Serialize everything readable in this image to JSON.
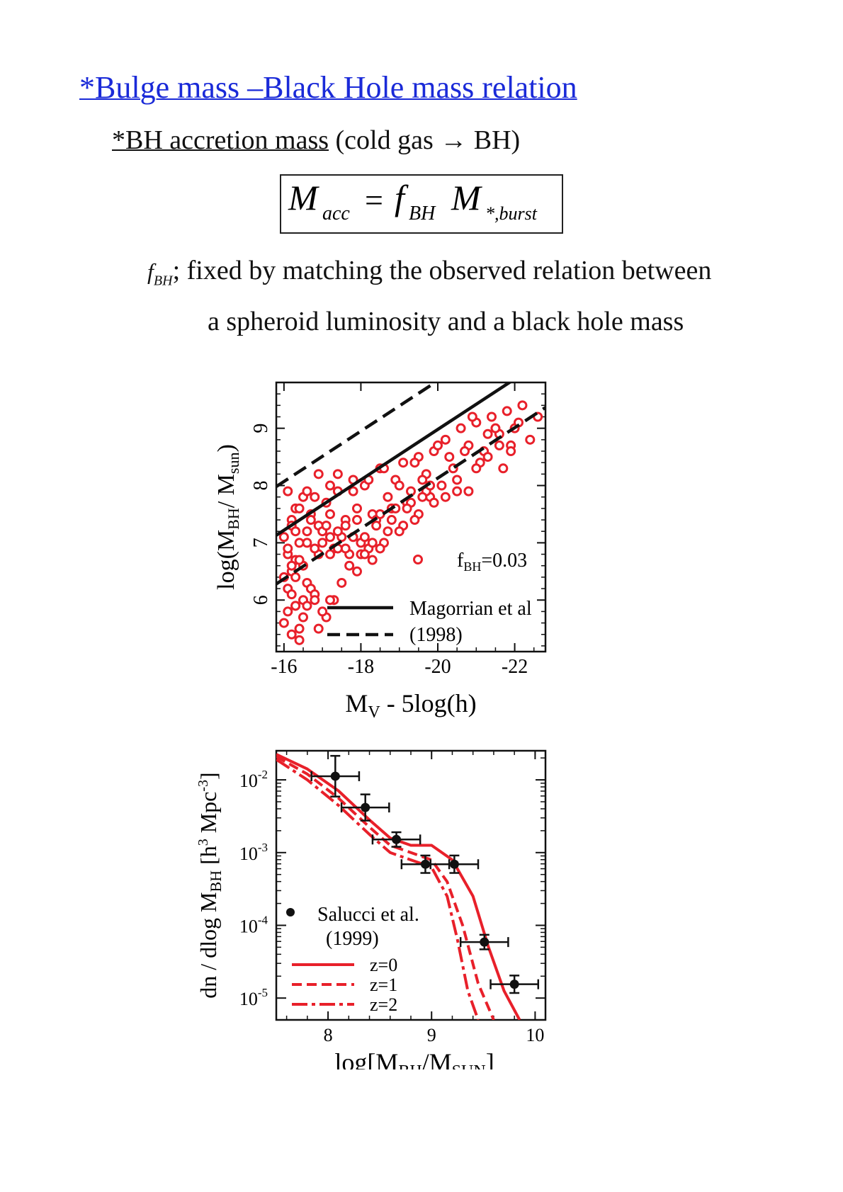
{
  "heading": {
    "title": "*Bulge mass –Black Hole mass relation",
    "subtitle_underlined": "*BH accretion mass",
    "subtitle_rest": " (cold gas  →   BH)"
  },
  "formula": {
    "lhs": "M",
    "lhs_sub": "acc",
    "equals": "=",
    "f": "f",
    "f_sub": "BH",
    "m": "M",
    "m_sub": "*,burst"
  },
  "description": {
    "symbol": "f",
    "symbol_sub": "BH",
    "line1": "; fixed by matching the observed relation between",
    "line2": "a spheroid luminosity and a black hole mass"
  },
  "colors": {
    "title": "#1a2ad8",
    "data_red": "#e8202a",
    "line_black": "#111111"
  },
  "chart_data": [
    {
      "type": "scatter",
      "xlabel_main": "M",
      "xlabel_sub": "V",
      "xlabel_rest": " - 5log(h)",
      "ylabel_main": "log(M",
      "ylabel_sub1": "BH",
      "ylabel_mid": "/ M",
      "ylabel_sub2": "sun",
      "ylabel_end": ")",
      "xlim": [
        -15.8,
        -22.8
      ],
      "ylim": [
        5.1,
        9.8
      ],
      "xticks": [
        -16,
        -18,
        -20,
        -22
      ],
      "xtick_labels": [
        "-16",
        "-18",
        "-20",
        "-22"
      ],
      "yticks": [
        6,
        7,
        8,
        9
      ],
      "ytick_labels": [
        "6",
        "7",
        "8",
        "9"
      ],
      "legend": {
        "marker_label_main": "f",
        "marker_label_sub": "BH",
        "marker_label_rest": "=0.03",
        "line_label_1": "Magorrian et al",
        "line_label_2": "(1998)"
      },
      "fit_line": {
        "name": "Magorrian et al (1998)",
        "slope": -0.44,
        "intercept": 0.18,
        "dex_band": 0.85
      },
      "series": [
        {
          "name": "f_BH=0.03",
          "x": [
            -16.0,
            -16.1,
            -16.2,
            -16.1,
            -16.3,
            -16.4,
            -16.2,
            -16.5,
            -16.1,
            -16.6,
            -16.3,
            -16.7,
            -16.9,
            -17.1,
            -17.2,
            -17.4,
            -17.6,
            -17.8,
            -17.9,
            -18.1,
            -18.3,
            -18.5,
            -18.7,
            -18.9,
            -19.1,
            -19.3,
            -19.5,
            -19.7,
            -19.9,
            -20.2,
            -20.4,
            -20.6,
            -20.8,
            -21.0,
            -21.2,
            -21.4,
            -21.6,
            -21.8,
            -22.0,
            -22.2,
            -22.4,
            -22.6,
            -16.2,
            -16.4,
            -16.6,
            -16.8,
            -17.0,
            -17.2,
            -17.4,
            -17.6,
            -17.8,
            -18.0,
            -18.2,
            -18.4,
            -18.6,
            -18.8,
            -19.0,
            -19.2,
            -19.4,
            -19.6,
            -19.8,
            -20.0,
            -20.3,
            -20.5,
            -20.7,
            -20.9,
            -21.1,
            -21.3,
            -21.5,
            -21.7,
            -21.9,
            -22.1,
            -16.1,
            -16.3,
            -16.5,
            -16.7,
            -16.9,
            -17.1,
            -17.3,
            -17.5,
            -17.7,
            -17.9,
            -18.1,
            -18.3,
            -18.5,
            -18.7,
            -18.9,
            -19.1,
            -19.3,
            -19.5,
            -19.7,
            -19.9,
            -20.1,
            -16.0,
            -16.2,
            -16.4,
            -16.6,
            -16.8,
            -17.0,
            -17.2,
            -17.4,
            -17.6,
            -17.8,
            -18.0,
            -18.2,
            -18.4,
            -18.6,
            -18.8,
            -19.0,
            -19.2,
            -19.4,
            -19.6,
            -16.1,
            -16.3,
            -16.5,
            -16.7,
            -16.9,
            -17.1,
            -17.3,
            -17.5,
            -17.7,
            -17.9,
            -18.1,
            -18.3,
            -18.5,
            -16.2,
            -16.4,
            -16.6,
            -16.8,
            -17.0,
            -17.2,
            -17.4,
            -16.0,
            -16.3,
            -16.6,
            -16.9,
            -17.2,
            -16.2,
            -16.5,
            -16.4,
            -16.8,
            -16.3,
            -20.5,
            -21.0,
            -20.8,
            -19.8,
            -20.2,
            -21.3,
            -21.6,
            -21.9
          ],
          "y": [
            7.1,
            6.8,
            7.4,
            6.2,
            7.6,
            7.0,
            6.5,
            7.8,
            7.9,
            7.2,
            6.7,
            7.5,
            7.3,
            7.7,
            7.1,
            7.9,
            7.4,
            8.1,
            7.6,
            8.0,
            7.5,
            8.3,
            7.8,
            8.1,
            8.4,
            7.9,
            8.5,
            8.2,
            8.6,
            8.8,
            8.3,
            9.0,
            8.7,
            9.1,
            8.6,
            9.2,
            8.9,
            9.3,
            9.0,
            9.4,
            8.8,
            9.2,
            7.3,
            7.6,
            7.0,
            7.8,
            7.2,
            7.5,
            8.2,
            7.3,
            7.9,
            7.0,
            8.1,
            7.4,
            8.3,
            7.6,
            8.0,
            7.7,
            8.4,
            8.1,
            7.8,
            8.7,
            8.5,
            7.9,
            8.6,
            9.2,
            8.4,
            8.9,
            9.0,
            8.3,
            8.7,
            9.1,
            6.9,
            7.2,
            6.6,
            7.4,
            6.8,
            7.3,
            6.9,
            7.1,
            6.8,
            7.4,
            7.1,
            6.7,
            7.5,
            7.2,
            7.6,
            7.3,
            7.7,
            7.5,
            7.9,
            7.7,
            8.0,
            6.4,
            6.1,
            6.7,
            6.3,
            6.9,
            7.0,
            6.8,
            7.2,
            6.9,
            7.1,
            6.8,
            6.9,
            7.3,
            7.0,
            7.4,
            7.2,
            7.6,
            7.4,
            7.8,
            5.8,
            5.9,
            6.0,
            6.2,
            5.5,
            5.7,
            6.0,
            6.3,
            6.6,
            6.5,
            6.8,
            7.0,
            6.9,
            5.4,
            5.5,
            5.9,
            6.1,
            5.8,
            6.0,
            6.9,
            5.6,
            6.4,
            7.9,
            8.2,
            8.0,
            6.6,
            5.7,
            5.3,
            6.0,
            5.9,
            8.1,
            8.3,
            7.9,
            8.0,
            7.8,
            8.5,
            8.7,
            8.6
          ]
        }
      ]
    },
    {
      "type": "line",
      "xlabel_main": "log[M",
      "xlabel_sub1": "BH",
      "xlabel_mid": "/M",
      "xlabel_sub2": "SUN",
      "xlabel_end": "]",
      "ylabel_main": "dn / dlog M",
      "ylabel_sub": "BH",
      "ylabel_rest": "  [h",
      "ylabel_sup1": "3",
      "ylabel_rest2": " Mpc",
      "ylabel_sup2": "-3",
      "ylabel_end": "]",
      "y_scale": "log",
      "xlim": [
        7.5,
        10.1
      ],
      "ylim_log10": [
        -5.3,
        -1.6
      ],
      "xticks": [
        8,
        9,
        10
      ],
      "xtick_labels": [
        "8",
        "9",
        "10"
      ],
      "yticks_log10": [
        -2,
        -3,
        -4,
        -5
      ],
      "ytick_base": "10",
      "ytick_exps": [
        "-2",
        "-3",
        "-4",
        "-5"
      ],
      "legend": {
        "points_label_1": "Salucci et al.",
        "points_label_2": "(1999)",
        "line_labels": [
          "z=0",
          "z=1",
          "z=2"
        ]
      },
      "points": {
        "name": "Salucci et al. (1999)",
        "x": [
          8.07,
          8.36,
          8.66,
          8.94,
          9.22,
          9.51,
          9.8
        ],
        "log10_y": [
          -1.95,
          -2.38,
          -2.82,
          -3.16,
          -3.16,
          -4.23,
          -4.81
        ],
        "xerr": [
          0.23,
          0.23,
          0.23,
          0.23,
          0.23,
          0.23,
          0.23
        ],
        "log10_yerr": [
          0.28,
          0.18,
          0.1,
          0.12,
          0.12,
          0.1,
          0.12
        ]
      },
      "series": [
        {
          "name": "z=0",
          "style": "solid",
          "x": [
            7.5,
            7.8,
            8.1,
            8.4,
            8.6,
            8.8,
            9.0,
            9.2,
            9.4,
            9.55,
            9.7,
            9.85
          ],
          "log10_y": [
            -1.65,
            -1.85,
            -2.15,
            -2.55,
            -2.8,
            -2.9,
            -2.9,
            -3.1,
            -3.6,
            -4.3,
            -4.9,
            -5.3
          ]
        },
        {
          "name": "z=1",
          "style": "dashed",
          "x": [
            7.5,
            7.8,
            8.1,
            8.4,
            8.6,
            8.8,
            9.0,
            9.15,
            9.3,
            9.45,
            9.6
          ],
          "log10_y": [
            -1.68,
            -1.92,
            -2.25,
            -2.65,
            -2.9,
            -3.0,
            -3.1,
            -3.4,
            -4.0,
            -4.8,
            -5.3
          ]
        },
        {
          "name": "z=2",
          "style": "dashdot",
          "x": [
            7.5,
            7.8,
            8.1,
            8.4,
            8.6,
            8.8,
            9.0,
            9.15,
            9.25,
            9.35,
            9.45
          ],
          "log10_y": [
            -1.72,
            -2.0,
            -2.35,
            -2.75,
            -3.0,
            -3.1,
            -3.2,
            -3.6,
            -4.2,
            -4.9,
            -5.3
          ]
        }
      ]
    }
  ]
}
